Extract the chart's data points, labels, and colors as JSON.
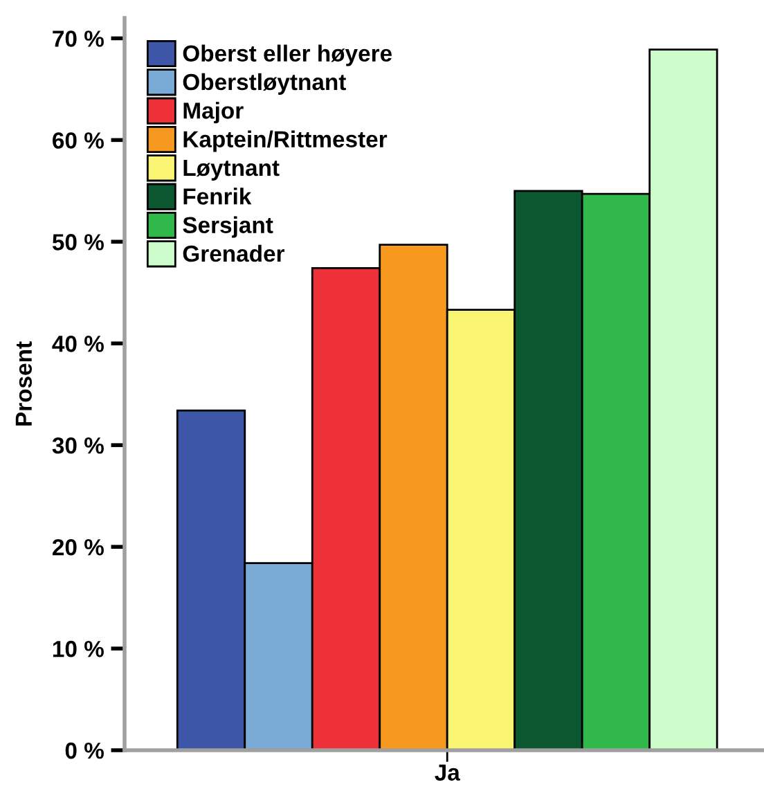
{
  "chart_data": {
    "type": "bar",
    "ylabel": "Prosent",
    "categories": [
      "Ja"
    ],
    "series": [
      {
        "name": "Oberst eller høyere",
        "color": "#3e56a8",
        "values": [
          33.4
        ]
      },
      {
        "name": "Oberstløytnant",
        "color": "#7aaad6",
        "values": [
          18.4
        ]
      },
      {
        "name": "Major",
        "color": "#ee3039",
        "values": [
          47.4
        ]
      },
      {
        "name": "Kaptein/Rittmester",
        "color": "#f7981f",
        "values": [
          49.7
        ]
      },
      {
        "name": "Løytnant",
        "color": "#f9f472",
        "values": [
          43.3
        ]
      },
      {
        "name": "Fenrik",
        "color": "#0b5830",
        "values": [
          55.0
        ]
      },
      {
        "name": "Sersjant",
        "color": "#31b84a",
        "values": [
          54.7
        ]
      },
      {
        "name": "Grenader",
        "color": "#ccfdcb",
        "values": [
          68.9
        ]
      }
    ],
    "ylim": [
      0,
      72
    ],
    "yticks": [
      {
        "value": 0,
        "label": "0 %"
      },
      {
        "value": 10,
        "label": "10 %"
      },
      {
        "value": 20,
        "label": "20 %"
      },
      {
        "value": 30,
        "label": "30 %"
      },
      {
        "value": 40,
        "label": "40 %"
      },
      {
        "value": 50,
        "label": "50 %"
      },
      {
        "value": 60,
        "label": "60 %"
      },
      {
        "value": 70,
        "label": "70 %"
      }
    ],
    "grid": false,
    "legend": "top left"
  }
}
